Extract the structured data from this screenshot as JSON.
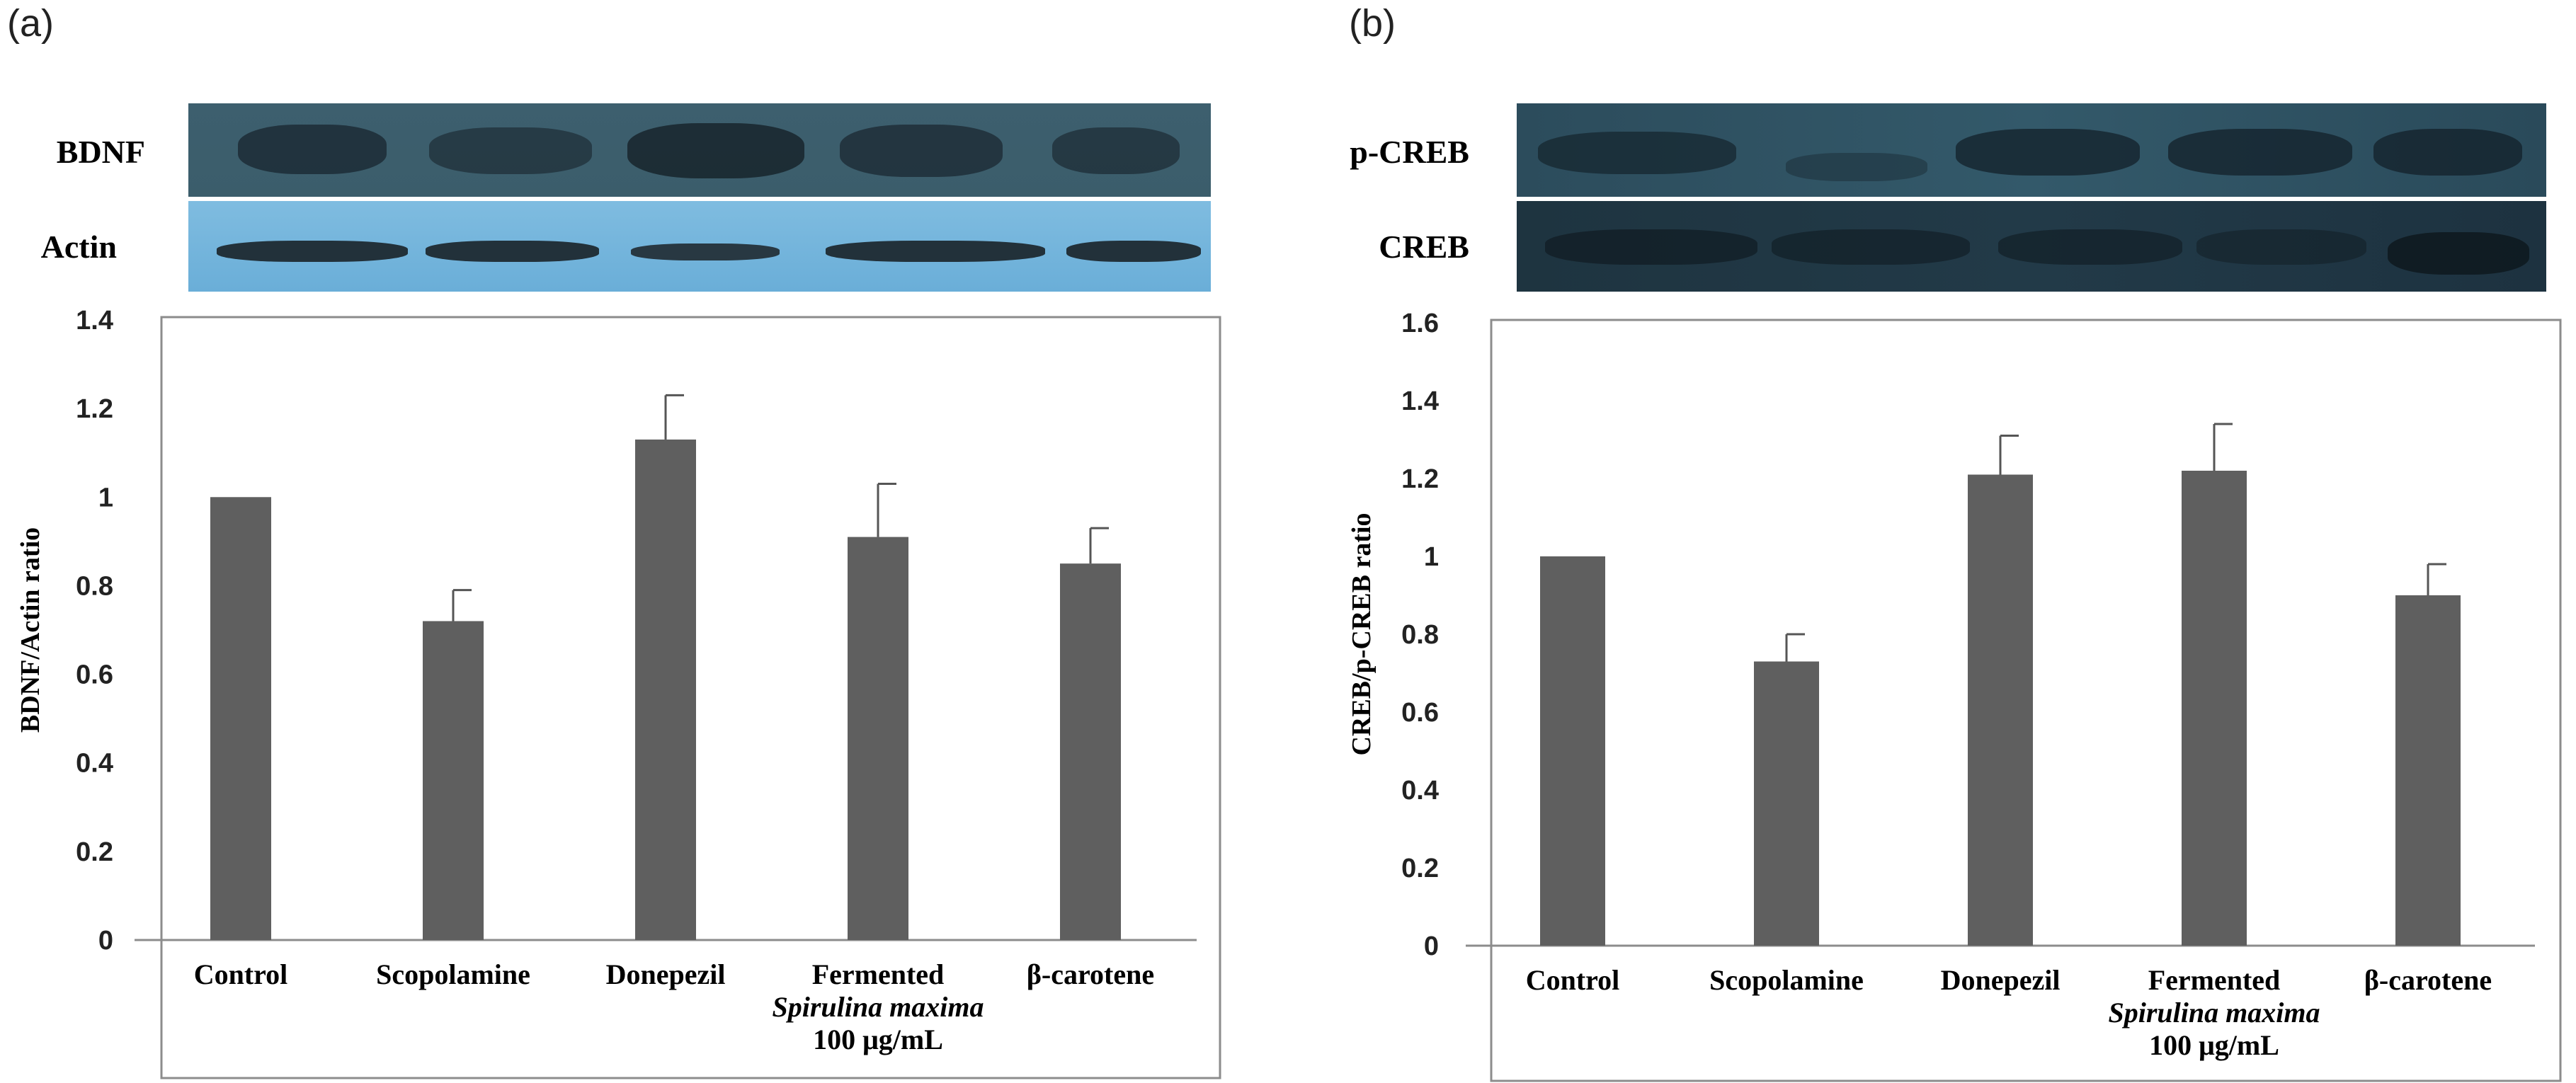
{
  "panels": {
    "a": {
      "label": "(a)",
      "blots": {
        "top_label": "BDNF",
        "bottom_label": "Actin"
      }
    },
    "b": {
      "label": "(b)",
      "blots": {
        "top_label": "p-CREB",
        "bottom_label": "CREB"
      }
    }
  },
  "chart_data": [
    {
      "type": "bar",
      "panel": "(a)",
      "categories": [
        "Control",
        "Scopolamine",
        "Donepezil",
        "Fermented Spirulina maxima 100 μg/mL",
        "β-carotene"
      ],
      "category_lines": [
        [
          "Control"
        ],
        [
          "Scopolamine"
        ],
        [
          "Donepezil"
        ],
        [
          "Fermented",
          "Spirulina maxima",
          "100 μg/mL"
        ],
        [
          "β-carotene"
        ]
      ],
      "values": [
        1.0,
        0.72,
        1.13,
        0.91,
        0.85
      ],
      "errors": [
        0.0,
        0.07,
        0.1,
        0.12,
        0.08
      ],
      "ylabel": "BDNF/Actin ratio",
      "ylim": [
        0,
        1.4
      ],
      "yticks": [
        "0",
        "0.2",
        "0.4",
        "0.6",
        "0.8",
        "1",
        "1.2",
        "1.4"
      ],
      "bar_color": "#5f5f5f"
    },
    {
      "type": "bar",
      "panel": "(b)",
      "categories": [
        "Control",
        "Scopolamine",
        "Donepezil",
        "Fermented Spirulina maxima 100 μg/mL",
        "β-carotene"
      ],
      "category_lines": [
        [
          "Control"
        ],
        [
          "Scopolamine"
        ],
        [
          "Donepezil"
        ],
        [
          "Fermented",
          "Spirulina maxima",
          "100 μg/mL"
        ],
        [
          "β-carotene"
        ]
      ],
      "values": [
        1.0,
        0.73,
        1.21,
        1.22,
        0.9
      ],
      "errors": [
        0.0,
        0.07,
        0.1,
        0.12,
        0.08
      ],
      "ylabel": "CREB/p-CREB ratio",
      "ylim": [
        0,
        1.6
      ],
      "yticks": [
        "0",
        "0.2",
        "0.4",
        "0.6",
        "0.8",
        "1",
        "1.2",
        "1.4",
        "1.6"
      ],
      "bar_color": "#5f5f5f"
    }
  ]
}
